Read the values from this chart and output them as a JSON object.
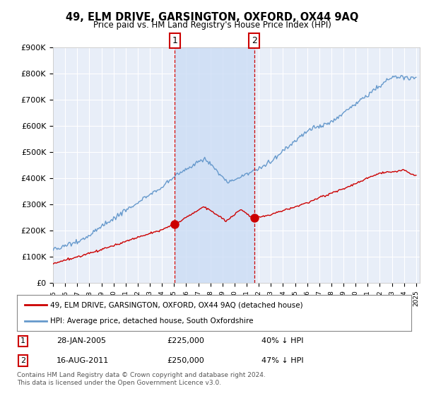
{
  "title": "49, ELM DRIVE, GARSINGTON, OXFORD, OX44 9AQ",
  "subtitle": "Price paid vs. HM Land Registry's House Price Index (HPI)",
  "ylim": [
    0,
    900000
  ],
  "yticks": [
    0,
    100000,
    200000,
    300000,
    400000,
    500000,
    600000,
    700000,
    800000,
    900000
  ],
  "ytick_labels": [
    "£0",
    "£100K",
    "£200K",
    "£300K",
    "£400K",
    "£500K",
    "£600K",
    "£700K",
    "£800K",
    "£900K"
  ],
  "background_color": "#ffffff",
  "plot_bg_color": "#e8eef8",
  "grid_color": "#ffffff",
  "shade_color": "#ccddf5",
  "sale1_price": 225000,
  "sale2_price": 250000,
  "sale1_x": 2005.07,
  "sale2_x": 2011.62,
  "sale1_date_str": "28-JAN-2005",
  "sale2_date_str": "16-AUG-2011",
  "sale1_pct": "40% ↓ HPI",
  "sale2_pct": "47% ↓ HPI",
  "legend_line1": "49, ELM DRIVE, GARSINGTON, OXFORD, OX44 9AQ (detached house)",
  "legend_line2": "HPI: Average price, detached house, South Oxfordshire",
  "footer": "Contains HM Land Registry data © Crown copyright and database right 2024.\nThis data is licensed under the Open Government Licence v3.0.",
  "red_color": "#cc0000",
  "blue_color": "#6699cc",
  "vline_color": "#cc0000",
  "box_edge_color": "#cc0000"
}
